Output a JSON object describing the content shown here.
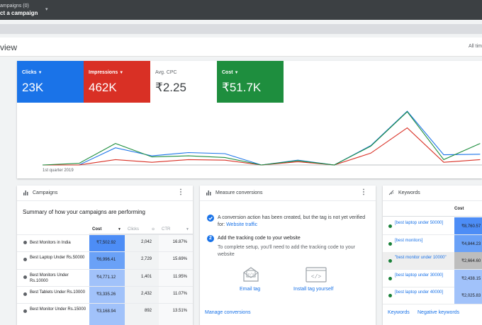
{
  "topbar": {
    "campaigns_label": "ampaigns (0)",
    "select_campaign": "ct a campaign"
  },
  "overview": {
    "title": "view",
    "date_range": "All tim"
  },
  "metrics": [
    {
      "name": "Clicks",
      "value": "23K",
      "color": "#1a73e8",
      "selected": true
    },
    {
      "name": "Impressions",
      "value": "462K",
      "color": "#d93025",
      "selected": true
    },
    {
      "name": "Avg. CPC",
      "value": "₹2.25",
      "color": "#ffffff",
      "selected": false
    },
    {
      "name": "Cost",
      "value": "₹51.7K",
      "color": "#1e8e3e",
      "selected": true
    }
  ],
  "chart_data": {
    "type": "line",
    "x_start_label": "1st quarter 2019",
    "series": [
      {
        "name": "Clicks",
        "color": "#1a73e8",
        "values": [
          0,
          0,
          0.32,
          0.17,
          0.23,
          0.21,
          0,
          0.09,
          0,
          0.36,
          1.0,
          0.19,
          0.2
        ]
      },
      {
        "name": "Impressions",
        "color": "#d93025",
        "values": [
          0,
          0,
          0.1,
          0.05,
          0.1,
          0.09,
          0,
          0.06,
          0,
          0.22,
          0.69,
          0.05,
          0.1
        ]
      },
      {
        "name": "Cost",
        "color": "#1e8e3e",
        "values": [
          0,
          0.03,
          0.4,
          0.15,
          0.17,
          0.14,
          0,
          0.08,
          0,
          0.35,
          0.99,
          0.1,
          0.4
        ]
      }
    ]
  },
  "campaigns_card": {
    "title": "Campaigns",
    "summary": "Summary of how your campaigns are performing",
    "columns": [
      "Cost",
      "Clicks",
      "CTR"
    ],
    "rows": [
      {
        "name": "Best Monitors in India",
        "cost": "₹7,502.92",
        "clicks": "2,042",
        "ctr": "16.87%"
      },
      {
        "name": "Best Laptop Under Rs.50000",
        "cost": "₹6,996.41",
        "clicks": "2,729",
        "ctr": "15.69%"
      },
      {
        "name": "Best Monitors Under Rs.10000",
        "cost": "₹4,771.12",
        "clicks": "1,401",
        "ctr": "11.95%"
      },
      {
        "name": "Best Tablets Under Rs.10000",
        "cost": "₹3,335.26",
        "clicks": "2,432",
        "ctr": "11.07%"
      },
      {
        "name": "Best Monitor Under Rs.15000",
        "cost": "₹3,168.94",
        "clicks": "892",
        "ctr": "13.51%"
      }
    ]
  },
  "conversions_card": {
    "title": "Measure conversions",
    "notice": "A conversion action has been created, but the tag is not yet verified for:",
    "notice_link": "Website traffic",
    "step_number": "2",
    "step_title": "Add the tracking code to your website",
    "step_desc": "To complete setup, you'll need to add the tracking code to your website",
    "email_tag": "Email tag",
    "install_tag": "Install tag yourself",
    "manage": "Manage conversions"
  },
  "keywords_card": {
    "title": "Keywords",
    "column": "Cost",
    "rows": [
      {
        "keyword": "[best laptop under 50000]",
        "cost": "₹8,760.57"
      },
      {
        "keyword": "[best monitors]",
        "cost": "₹4,844.23"
      },
      {
        "keyword": "\"best monitor under 10000\"",
        "cost": "₹2,664.60"
      },
      {
        "keyword": "[best laptop under 30000]",
        "cost": "₹2,438.15"
      },
      {
        "keyword": "[best laptop under 40000]",
        "cost": "₹2,025.83"
      }
    ],
    "footer_keywords": "Keywords",
    "footer_negative": "Negative keywords"
  }
}
